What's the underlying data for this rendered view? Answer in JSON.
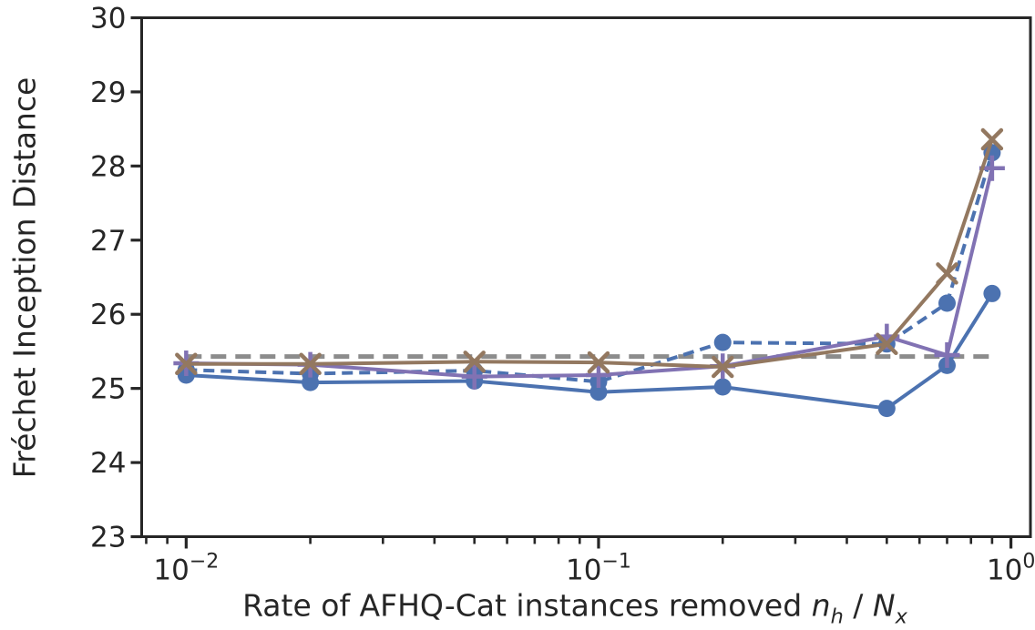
{
  "chart_data": {
    "type": "line",
    "title": "",
    "xlabel": "Rate of AFHQ-Cat instances removed n_h / N_x",
    "xlabel_parts": {
      "prefix": "Rate of AFHQ-Cat instances removed ",
      "var1": "n",
      "var1_sub": "h",
      "separator": " / ",
      "var2": "N",
      "var2_sub": "x"
    },
    "ylabel": "Fréchet Inception Distance",
    "x_scale": "log",
    "xlim": [
      0.0078,
      1.115
    ],
    "ylim": [
      23,
      30
    ],
    "grid": false,
    "legend": "none",
    "y_ticks": [
      23,
      24,
      25,
      26,
      27,
      28,
      29,
      30
    ],
    "x_major_ticks": [
      {
        "value": 0.01,
        "base": "10",
        "sup": "−2"
      },
      {
        "value": 0.1,
        "base": "10",
        "sup": "−1"
      },
      {
        "value": 1.0,
        "base": "10",
        "sup": "0"
      }
    ],
    "x_minor_ticks": [
      0.008,
      0.009,
      0.02,
      0.03,
      0.04,
      0.05,
      0.06,
      0.07,
      0.08,
      0.09,
      0.2,
      0.3,
      0.4,
      0.5,
      0.6,
      0.7,
      0.8,
      0.9
    ],
    "x": [
      0.01,
      0.02,
      0.05,
      0.1,
      0.2,
      0.5,
      0.7,
      0.9
    ],
    "series": [
      {
        "name": "reference-baseline",
        "color": "#8C8C8C",
        "line": "dashed",
        "dash": [
          17,
          10
        ],
        "line_width": 5,
        "marker": "none",
        "x": [
          0.01,
          0.9
        ],
        "values": [
          25.43,
          25.43
        ]
      },
      {
        "name": "blue-dashed-circles",
        "color": "#4C72B0",
        "line": "dashed",
        "dash": [
          12,
          7
        ],
        "line_width": 4,
        "marker": "circle",
        "values": [
          25.25,
          25.2,
          25.24,
          25.09,
          25.62,
          25.6,
          26.15,
          28.18
        ]
      },
      {
        "name": "blue-solid-circles",
        "color": "#4C72B0",
        "line": "solid",
        "line_width": 4,
        "marker": "circle",
        "values": [
          25.18,
          25.08,
          25.1,
          24.95,
          25.02,
          24.73,
          25.31,
          26.28
        ]
      },
      {
        "name": "purple-plus",
        "color": "#8172B3",
        "line": "solid",
        "line_width": 4,
        "marker": "plus",
        "values": [
          25.34,
          25.32,
          25.16,
          25.18,
          25.3,
          25.7,
          25.45,
          27.97
        ]
      },
      {
        "name": "brown-x",
        "color": "#937860",
        "line": "solid",
        "line_width": 4,
        "marker": "x",
        "values": [
          25.33,
          25.33,
          25.36,
          25.35,
          25.29,
          25.6,
          26.55,
          28.36
        ]
      }
    ],
    "axis_color": "#262626",
    "tick_label_color": "#262626"
  }
}
